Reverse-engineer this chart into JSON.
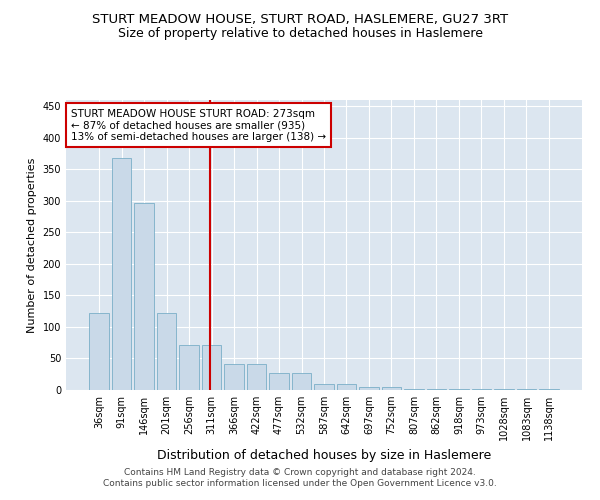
{
  "title": "STURT MEADOW HOUSE, STURT ROAD, HASLEMERE, GU27 3RT",
  "subtitle": "Size of property relative to detached houses in Haslemere",
  "xlabel": "Distribution of detached houses by size in Haslemere",
  "ylabel": "Number of detached properties",
  "bar_labels": [
    "36sqm",
    "91sqm",
    "146sqm",
    "201sqm",
    "256sqm",
    "311sqm",
    "366sqm",
    "422sqm",
    "477sqm",
    "532sqm",
    "587sqm",
    "642sqm",
    "697sqm",
    "752sqm",
    "807sqm",
    "862sqm",
    "918sqm",
    "973sqm",
    "1028sqm",
    "1083sqm",
    "1138sqm"
  ],
  "bar_heights": [
    122,
    368,
    297,
    122,
    72,
    72,
    42,
    42,
    27,
    27,
    10,
    10,
    5,
    5,
    2,
    1,
    1,
    1,
    1,
    2,
    1
  ],
  "bar_color": "#c9d9e8",
  "bar_edgecolor": "#7aafc8",
  "vline_x": 4.93,
  "vline_color": "#cc0000",
  "annotation_text": "STURT MEADOW HOUSE STURT ROAD: 273sqm\n← 87% of detached houses are smaller (935)\n13% of semi-detached houses are larger (138) →",
  "annotation_box_edgecolor": "#cc0000",
  "ylim": [
    0,
    460
  ],
  "yticks": [
    0,
    50,
    100,
    150,
    200,
    250,
    300,
    350,
    400,
    450
  ],
  "background_color": "#dce6f0",
  "grid_color": "#ffffff",
  "footer_text": "Contains HM Land Registry data © Crown copyright and database right 2024.\nContains public sector information licensed under the Open Government Licence v3.0.",
  "title_fontsize": 9.5,
  "subtitle_fontsize": 9,
  "xlabel_fontsize": 9,
  "ylabel_fontsize": 8,
  "tick_fontsize": 7,
  "annotation_fontsize": 7.5,
  "footer_fontsize": 6.5
}
